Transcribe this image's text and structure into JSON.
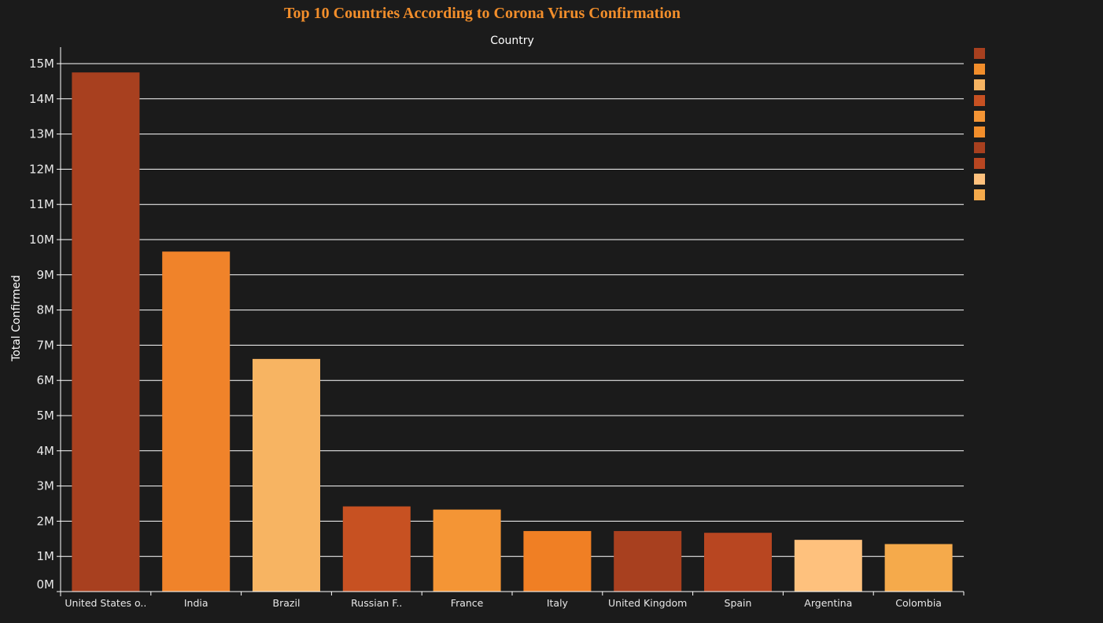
{
  "chart_data": {
    "type": "bar",
    "title": "Top 10 Countries According to Corona Virus Confirmation",
    "xlabel": "Country",
    "ylabel": "Total Confirmed",
    "x_axis_position": "top",
    "legend_position": "right",
    "grid": true,
    "ylim": [
      0,
      15000000
    ],
    "y_ticks": [
      0,
      1000000,
      2000000,
      3000000,
      4000000,
      5000000,
      6000000,
      7000000,
      8000000,
      9000000,
      10000000,
      11000000,
      12000000,
      13000000,
      14000000,
      15000000
    ],
    "y_tick_labels": [
      "0M",
      "1M",
      "2M",
      "3M",
      "4M",
      "5M",
      "6M",
      "7M",
      "8M",
      "9M",
      "10M",
      "11M",
      "12M",
      "13M",
      "14M",
      "15M"
    ],
    "categories": [
      "United States o..",
      "India",
      "Brazil",
      "Russian F..",
      "France",
      "Italy",
      "United Kingdom",
      "Spain",
      "Argentina",
      "Colombia"
    ],
    "values": [
      14750000,
      9660000,
      6610000,
      2420000,
      2330000,
      1720000,
      1720000,
      1670000,
      1470000,
      1350000
    ],
    "colors": [
      "#a8401f",
      "#f0832a",
      "#f7b462",
      "#c75122",
      "#f49535",
      "#f07f24",
      "#a8401f",
      "#b84621",
      "#fec17d",
      "#f5aa4b"
    ],
    "legend_swatches": [
      "#a8401f",
      "#f28e2b",
      "#f7b462",
      "#c75122",
      "#f49535",
      "#f28e2b",
      "#a8401f",
      "#b84621",
      "#fec17d",
      "#f5aa4b"
    ]
  }
}
